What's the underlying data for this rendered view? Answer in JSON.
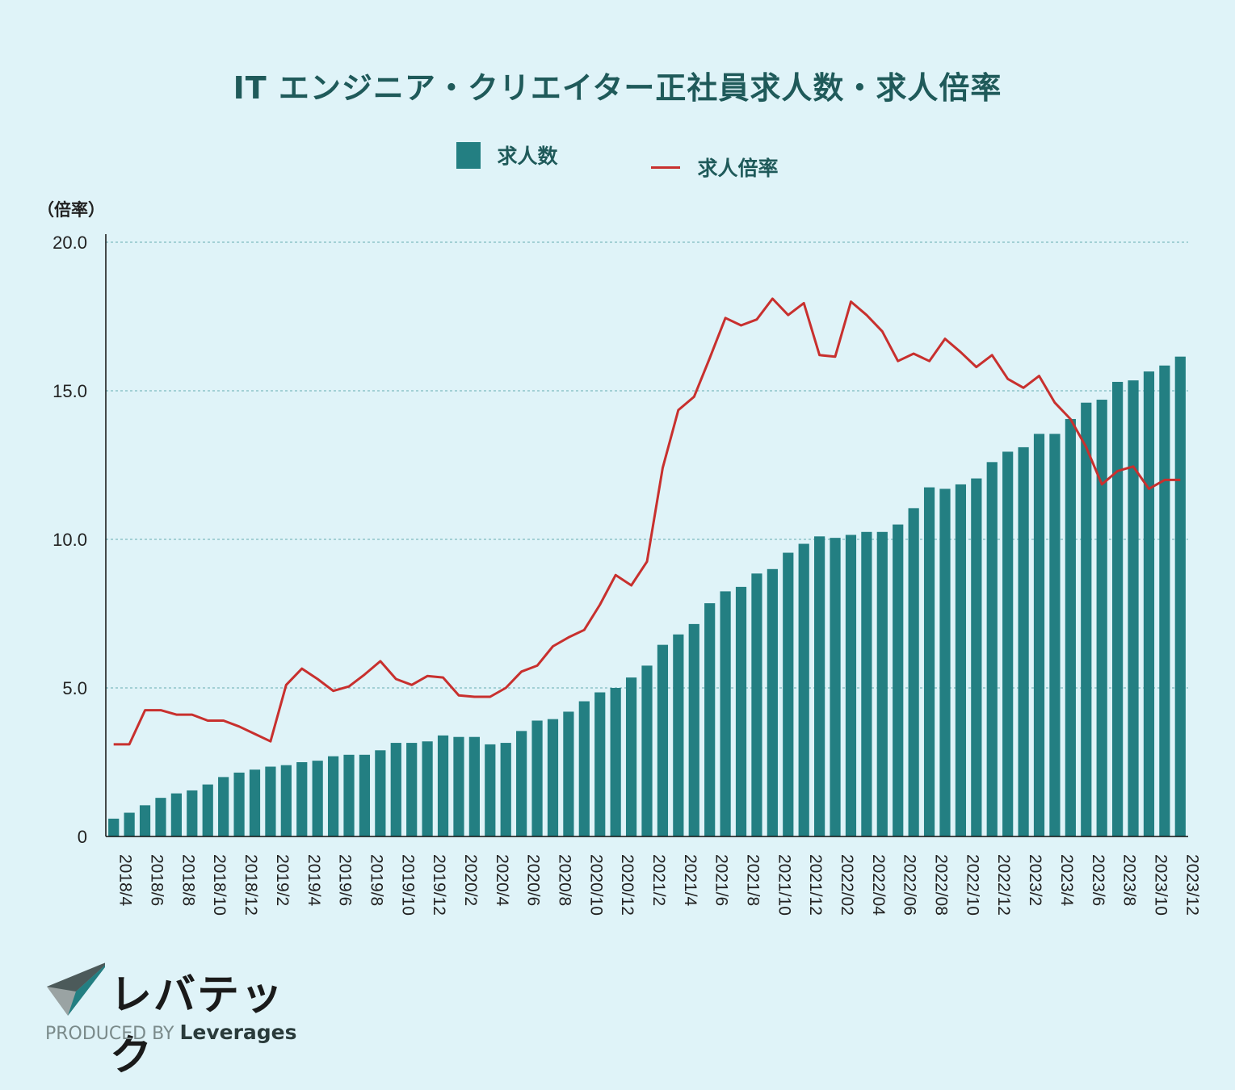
{
  "title": "IT エンジニア・クリエイター正社員求人数・求人倍率",
  "legend": {
    "bar_label": "求人数",
    "line_label": "求人倍率"
  },
  "y_unit": "（倍率）",
  "colors": {
    "bar": "#237f82",
    "line": "#c8302e",
    "grid": "#7fbcc0",
    "background": "#dff3f8"
  },
  "brand": {
    "name": "レバテック",
    "produced_by": "PRODUCED BY",
    "company": "Leverages",
    "logo_icon": "paper-plane-icon"
  },
  "chart_data": {
    "type": "bar-line",
    "ylim": [
      0,
      20
    ],
    "yticks": [
      "0",
      "5.0",
      "10.0",
      "15.0",
      "20.0"
    ],
    "yticks_values": [
      0,
      5,
      10,
      15,
      20
    ],
    "grid": true,
    "legend_position": "top-center",
    "xtick_labels": [
      "2018/4",
      "2018/6",
      "2018/8",
      "2018/10",
      "2018/12",
      "2019/2",
      "2019/4",
      "2019/6",
      "2019/8",
      "2019/10",
      "2019/12",
      "2020/2",
      "2020/4",
      "2020/6",
      "2020/8",
      "2020/10",
      "2020/12",
      "2021/2",
      "2021/4",
      "2021/6",
      "2021/8",
      "2021/10",
      "2021/12",
      "2022/02",
      "2022/04",
      "2022/06",
      "2022/08",
      "2022/10",
      "2022/12",
      "2023/2",
      "2023/4",
      "2023/6",
      "2023/8",
      "2023/10",
      "2023/12"
    ],
    "series": [
      {
        "name": "求人数",
        "kind": "bar",
        "values": [
          0.6,
          0.8,
          1.05,
          1.3,
          1.45,
          1.55,
          1.75,
          2.0,
          2.15,
          2.25,
          2.35,
          2.4,
          2.5,
          2.55,
          2.7,
          2.75,
          2.75,
          2.9,
          3.15,
          3.15,
          3.2,
          3.4,
          3.35,
          3.35,
          3.1,
          3.15,
          3.55,
          3.9,
          3.95,
          4.2,
          4.55,
          4.85,
          5.0,
          5.35,
          5.75,
          6.45,
          6.8,
          7.15,
          7.85,
          8.25,
          8.4,
          8.85,
          9.0,
          9.55,
          9.85,
          10.1,
          10.05,
          10.15,
          10.25,
          10.25,
          10.5,
          11.05,
          11.75,
          11.7,
          11.85,
          12.05,
          12.6,
          12.95,
          13.1,
          13.55,
          13.55,
          14.05,
          14.6,
          14.7,
          15.3,
          15.35,
          15.65,
          15.85,
          16.15
        ]
      },
      {
        "name": "求人倍率",
        "kind": "line",
        "values": [
          3.1,
          3.1,
          4.25,
          4.25,
          4.1,
          4.1,
          3.9,
          3.9,
          3.7,
          3.45,
          3.2,
          5.1,
          5.65,
          5.3,
          4.9,
          5.05,
          5.45,
          5.9,
          5.3,
          5.1,
          5.4,
          5.35,
          4.75,
          4.7,
          4.7,
          5.0,
          5.55,
          5.75,
          6.4,
          6.7,
          6.95,
          7.8,
          8.8,
          8.45,
          9.25,
          12.4,
          14.35,
          14.8,
          16.1,
          17.45,
          17.2,
          17.4,
          18.1,
          17.55,
          17.95,
          16.2,
          16.15,
          18.0,
          17.55,
          17.0,
          16.0,
          16.25,
          16.0,
          16.75,
          16.3,
          15.8,
          16.2,
          15.4,
          15.1,
          15.5,
          14.6,
          14.05,
          13.1,
          11.85,
          12.3,
          12.45,
          11.7,
          12.0,
          12.0
        ]
      }
    ]
  }
}
